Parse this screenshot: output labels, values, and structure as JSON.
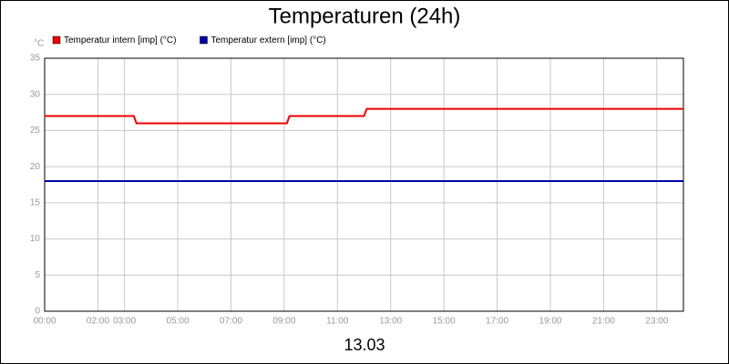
{
  "chart_data": {
    "type": "line",
    "title": "Temperaturen (24h)",
    "y_label": "°C",
    "x_label": "13.03",
    "series": [
      {
        "name": "Temperatur intern [imp] (°C)",
        "color": "#ee0000",
        "x": [
          0,
          3.35,
          3.45,
          9.1,
          9.2,
          12.0,
          12.1,
          24
        ],
        "values": [
          27,
          27,
          26,
          26,
          27,
          27,
          28,
          28
        ]
      },
      {
        "name": "Temperatur extern [imp] (°C)",
        "color": "#0000aa",
        "x": [
          0,
          24
        ],
        "values": [
          18,
          18
        ]
      }
    ],
    "xlim": [
      0,
      24
    ],
    "xticks": [
      {
        "value": 0,
        "label": "00:00"
      },
      {
        "value": 2,
        "label": "02:00"
      },
      {
        "value": 3,
        "label": "03:00"
      },
      {
        "value": 5,
        "label": "05:00"
      },
      {
        "value": 7,
        "label": "07:00"
      },
      {
        "value": 9,
        "label": "09:00"
      },
      {
        "value": 11,
        "label": "11:00"
      },
      {
        "value": 13,
        "label": "13:00"
      },
      {
        "value": 15,
        "label": "15:00"
      },
      {
        "value": 17,
        "label": "17:00"
      },
      {
        "value": 19,
        "label": "19:00"
      },
      {
        "value": 21,
        "label": "21:00"
      },
      {
        "value": 23,
        "label": "23:00"
      }
    ],
    "ylim": [
      0,
      35
    ],
    "yticks": [
      0,
      5,
      10,
      15,
      20,
      25,
      30,
      35
    ],
    "grid": true
  }
}
